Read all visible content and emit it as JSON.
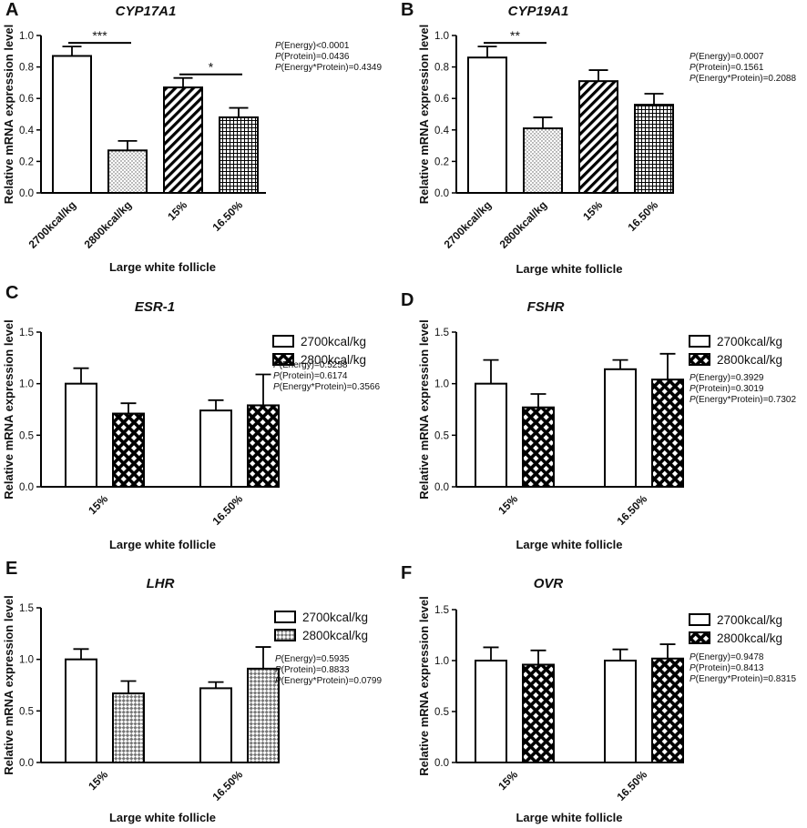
{
  "chart_data": [
    {
      "panel": "A",
      "title": "CYP17A1",
      "type": "bar",
      "xlabel": "Large white follicle",
      "ylabel": "Relative mRNA expression level",
      "ylim": [
        0,
        1.0
      ],
      "yticks": [
        "0.0",
        "0.2",
        "0.4",
        "0.6",
        "0.8",
        "1.0"
      ],
      "categories": [
        "2700kcal/kg",
        "2800kcal/kg",
        "15%",
        "16.50%"
      ],
      "values": [
        0.87,
        0.27,
        0.67,
        0.48
      ],
      "errors": [
        0.06,
        0.06,
        0.06,
        0.06
      ],
      "patterns": [
        "white",
        "dots",
        "diag",
        "grid"
      ],
      "significance": [
        {
          "from": 0,
          "to": 1,
          "label": "***"
        },
        {
          "from": 2,
          "to": 3,
          "label": "*"
        }
      ],
      "pvalues": [
        {
          "term": "P",
          "rest": "(Energy)<0.0001"
        },
        {
          "term": "P",
          "rest": "(Protein)=0.0436"
        },
        {
          "term": "P",
          "rest": "(Energy*Protein)=0.4349"
        }
      ]
    },
    {
      "panel": "B",
      "title": "CYP19A1",
      "type": "bar",
      "xlabel": "Large white follicle",
      "ylabel": "Relative mRNA expression level",
      "ylim": [
        0,
        1.0
      ],
      "yticks": [
        "0.0",
        "0.2",
        "0.4",
        "0.6",
        "0.8",
        "1.0"
      ],
      "categories": [
        "2700kcal/kg",
        "2800kcal/kg",
        "15%",
        "16.50%"
      ],
      "values": [
        0.86,
        0.41,
        0.71,
        0.56
      ],
      "errors": [
        0.07,
        0.07,
        0.07,
        0.07
      ],
      "patterns": [
        "white",
        "dots",
        "diag",
        "grid"
      ],
      "significance": [
        {
          "from": 0,
          "to": 1,
          "label": "**"
        }
      ],
      "pvalues": [
        {
          "term": "P",
          "rest": "(Energy)=0.0007"
        },
        {
          "term": "P",
          "rest": "(Protein)=0.1561"
        },
        {
          "term": "P",
          "rest": "(Energy*Protein)=0.2088"
        }
      ]
    },
    {
      "panel": "C",
      "title": "ESR-1",
      "type": "bar",
      "xlabel": "Large white follicle",
      "ylabel": "Relative mRNA expression level",
      "ylim": [
        0,
        1.5
      ],
      "yticks": [
        "0.0",
        "0.5",
        "1.0",
        "1.5"
      ],
      "categories": [
        "15%",
        "16.50%"
      ],
      "legend": [
        "2700kcal/kg",
        "2800kcal/kg"
      ],
      "series": [
        {
          "name": "2700kcal/kg",
          "values": [
            1.0,
            0.74
          ],
          "errors": [
            0.15,
            0.1
          ]
        },
        {
          "name": "2800kcal/kg",
          "values": [
            0.71,
            0.79
          ],
          "errors": [
            0.1,
            0.3
          ]
        }
      ],
      "pattern2": "xhatch",
      "pvalues": [
        {
          "term": "P",
          "rest": "(Energy)=0.5258"
        },
        {
          "term": "P",
          "rest": "(Protein)=0.6174"
        },
        {
          "term": "P",
          "rest": "(Energy*Protein)=0.3566"
        }
      ]
    },
    {
      "panel": "D",
      "title": "FSHR",
      "type": "bar",
      "xlabel": "Large white follicle",
      "ylabel": "Relative mRNA expression level",
      "ylim": [
        0,
        1.5
      ],
      "yticks": [
        "0.0",
        "0.5",
        "1.0",
        "1.5"
      ],
      "categories": [
        "15%",
        "16.50%"
      ],
      "legend": [
        "2700kcal/kg",
        "2800kcal/kg"
      ],
      "series": [
        {
          "name": "2700kcal/kg",
          "values": [
            1.0,
            1.14
          ],
          "errors": [
            0.23,
            0.09
          ]
        },
        {
          "name": "2800kcal/kg",
          "values": [
            0.77,
            1.04
          ],
          "errors": [
            0.13,
            0.25
          ]
        }
      ],
      "pattern2": "xhatch",
      "pvalues": [
        {
          "term": "P",
          "rest": "(Energy)=0.3929"
        },
        {
          "term": "P",
          "rest": "(Protein)=0.3019"
        },
        {
          "term": "P",
          "rest": "(Energy*Protein)=0.7302"
        }
      ]
    },
    {
      "panel": "E",
      "title": "LHR",
      "type": "bar",
      "xlabel": "Large white follicle",
      "ylabel": "Relative mRNA expression level",
      "ylim": [
        0,
        1.5
      ],
      "yticks": [
        "0.0",
        "0.5",
        "1.0",
        "1.5"
      ],
      "categories": [
        "15%",
        "16.50%"
      ],
      "legend": [
        "2700kcal/kg",
        "2800kcal/kg"
      ],
      "series": [
        {
          "name": "2700kcal/kg",
          "values": [
            1.0,
            0.72
          ],
          "errors": [
            0.1,
            0.06
          ]
        },
        {
          "name": "2800kcal/kg",
          "values": [
            0.67,
            0.91
          ],
          "errors": [
            0.12,
            0.21
          ]
        }
      ],
      "pattern2": "check",
      "pvalues": [
        {
          "term": "P",
          "rest": "(Energy)=0.5935"
        },
        {
          "term": "P",
          "rest": "(Protein)=0.8833"
        },
        {
          "term": "P",
          "rest": "(Energy*Protein)=0.0799"
        }
      ]
    },
    {
      "panel": "F",
      "title": "OVR",
      "type": "bar",
      "xlabel": "Large white follicle",
      "ylabel": "Relative mRNA expression level",
      "ylim": [
        0,
        1.5
      ],
      "yticks": [
        "0.0",
        "0.5",
        "1.0",
        "1.5"
      ],
      "categories": [
        "15%",
        "16.50%"
      ],
      "legend": [
        "2700kcal/kg",
        "2800kcal/kg"
      ],
      "series": [
        {
          "name": "2700kcal/kg",
          "values": [
            1.0,
            1.0
          ],
          "errors": [
            0.13,
            0.11
          ]
        },
        {
          "name": "2800kcal/kg",
          "values": [
            0.96,
            1.02
          ],
          "errors": [
            0.14,
            0.14
          ]
        }
      ],
      "pattern2": "xhatch",
      "pvalues": [
        {
          "term": "P",
          "rest": "(Energy)=0.9478"
        },
        {
          "term": "P",
          "rest": "(Protein)=0.8413"
        },
        {
          "term": "P",
          "rest": "(Energy*Protein)=0.8315"
        }
      ]
    }
  ]
}
